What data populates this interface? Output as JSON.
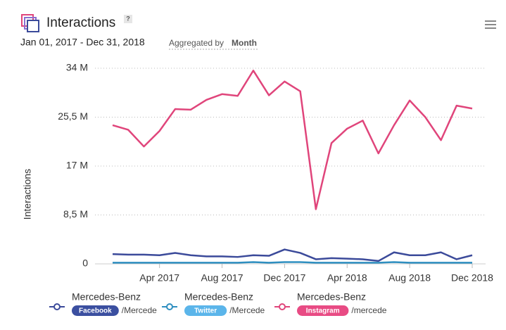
{
  "header": {
    "title": "Interactions",
    "help": "?",
    "date_range": "Jan 01, 2017 - Dec 31, 2018",
    "aggregated_prefix": "Aggregated by",
    "aggregated_value": "Month"
  },
  "chart_data": {
    "type": "line",
    "y_label": "Interactions",
    "categories": [
      null,
      null,
      null,
      "Apr 2017",
      null,
      null,
      null,
      "Aug 2017",
      null,
      null,
      null,
      "Dec 2017",
      null,
      null,
      null,
      "Apr 2018",
      null,
      null,
      null,
      "Aug 2018",
      null,
      null,
      null,
      "Dec 2018"
    ],
    "ylim": [
      0,
      34
    ],
    "yticks": [
      0,
      {
        "value": 8.5,
        "label": "8,5 M"
      },
      {
        "value": 17,
        "label": "17 M"
      },
      {
        "value": 25.5,
        "label": "25,5 M"
      },
      {
        "value": 34,
        "label": "34 M"
      }
    ],
    "grid": true,
    "series": [
      {
        "name": "Mercedes-Benz",
        "platform": "Facebook",
        "handle": "/Mercede",
        "color": "#3b4a9a",
        "badge_color": "#3b4fa0",
        "values": [
          1.7,
          1.6,
          1.6,
          1.5,
          1.9,
          1.5,
          1.3,
          1.3,
          1.2,
          1.5,
          1.4,
          2.5,
          1.9,
          0.8,
          1.0,
          0.9,
          0.8,
          0.5,
          2.0,
          1.5,
          1.5,
          2.0,
          0.8,
          1.5
        ]
      },
      {
        "name": "Mercedes-Benz",
        "platform": "Twitter",
        "handle": "/Mercede",
        "color": "#2f8fc0",
        "badge_color": "#5bb5ea",
        "values": [
          0.2,
          0.2,
          0.2,
          0.2,
          0.2,
          0.2,
          0.2,
          0.2,
          0.2,
          0.3,
          0.2,
          0.3,
          0.3,
          0.2,
          0.2,
          0.2,
          0.2,
          0.2,
          0.3,
          0.2,
          0.2,
          0.2,
          0.2,
          0.2
        ]
      },
      {
        "name": "Mercedes-Benz",
        "platform": "Instagram",
        "handle": "/mercede",
        "color": "#e0457b",
        "badge_color": "#e84b84",
        "values": [
          24.1,
          23.3,
          20.4,
          23.1,
          26.9,
          26.8,
          28.5,
          29.5,
          29.2,
          33.6,
          29.3,
          31.7,
          30.0,
          9.5,
          21.0,
          23.5,
          24.9,
          19.2,
          24.1,
          28.4,
          25.5,
          21.5,
          27.5,
          27.0
        ]
      }
    ]
  }
}
